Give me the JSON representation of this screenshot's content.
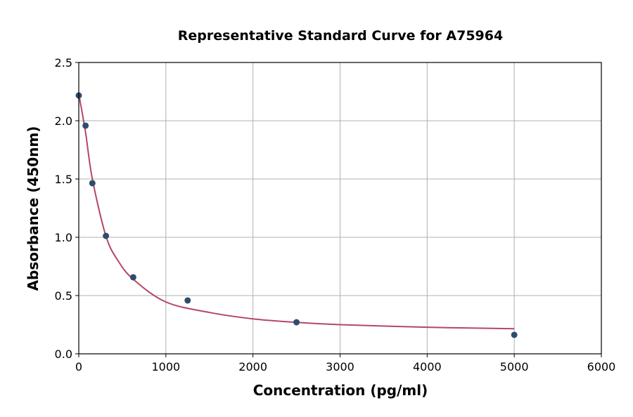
{
  "chart_data": {
    "type": "scatter",
    "title": "Representative Standard Curve for A75964",
    "xlabel": "Concentration (pg/ml)",
    "ylabel": "Absorbance (450nm)",
    "xlim": [
      0,
      6000
    ],
    "ylim": [
      0,
      2.5
    ],
    "xticks": [
      0,
      1000,
      2000,
      3000,
      4000,
      5000,
      6000
    ],
    "yticks": [
      "0.0",
      "0.5",
      "1.0",
      "1.5",
      "2.0",
      "2.5"
    ],
    "grid": true,
    "points": {
      "x": [
        0,
        78,
        156,
        312,
        625,
        1250,
        2500,
        5000
      ],
      "y": [
        2.217,
        1.958,
        1.464,
        1.012,
        0.657,
        0.458,
        0.271,
        0.163
      ],
      "color": "#2e4d6e"
    },
    "fit_curve": {
      "x": [
        0,
        78,
        156,
        312,
        450,
        625,
        1000,
        1500,
        2000,
        2500,
        3000,
        4000,
        5000
      ],
      "y": [
        2.23,
        1.9,
        1.5,
        1.01,
        0.8,
        0.64,
        0.445,
        0.355,
        0.3,
        0.27,
        0.25,
        0.228,
        0.215
      ],
      "color": "#b5466b"
    }
  }
}
